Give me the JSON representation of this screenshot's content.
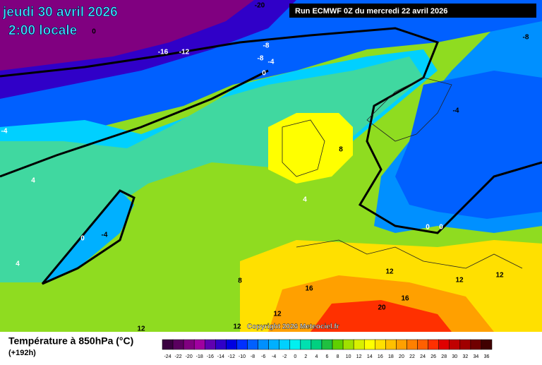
{
  "header": {
    "date": "jeudi 30 avril 2026",
    "time": "2:00 locale",
    "run": "Run ECMWF 0Z du mercredi 22 avril 2026"
  },
  "copyright": "Copyright 2026 Meteociel.fr",
  "footer": {
    "title": "Température à 850hPa (°C)",
    "lead": "(+192h)"
  },
  "scale": {
    "labels": [
      -24,
      -22,
      -20,
      -18,
      -16,
      -14,
      -12,
      -10,
      -8,
      -6,
      -4,
      -2,
      0,
      2,
      4,
      6,
      8,
      10,
      12,
      14,
      16,
      18,
      20,
      22,
      24,
      26,
      28,
      30,
      32,
      34,
      36
    ],
    "colors": [
      "#3a0040",
      "#5a005f",
      "#800080",
      "#a000a0",
      "#6000b0",
      "#3000c8",
      "#0000e0",
      "#0030ff",
      "#0060ff",
      "#0090ff",
      "#00b0ff",
      "#00d0ff",
      "#00f0f0",
      "#00e0b0",
      "#00d080",
      "#20c040",
      "#60d000",
      "#a0e000",
      "#d8f000",
      "#ffff00",
      "#ffe000",
      "#ffc000",
      "#ffa000",
      "#ff8000",
      "#ff6000",
      "#ff3000",
      "#e00000",
      "#c00000",
      "#a00000",
      "#700000",
      "#400000"
    ]
  },
  "contour_labels": [
    -20,
    0,
    -16,
    -12,
    -8,
    -8,
    -4,
    0,
    -8,
    -4,
    -4,
    8,
    4,
    4,
    -4,
    0,
    4,
    0,
    0,
    8,
    12,
    12,
    12,
    16,
    16,
    20,
    12,
    12,
    12
  ]
}
